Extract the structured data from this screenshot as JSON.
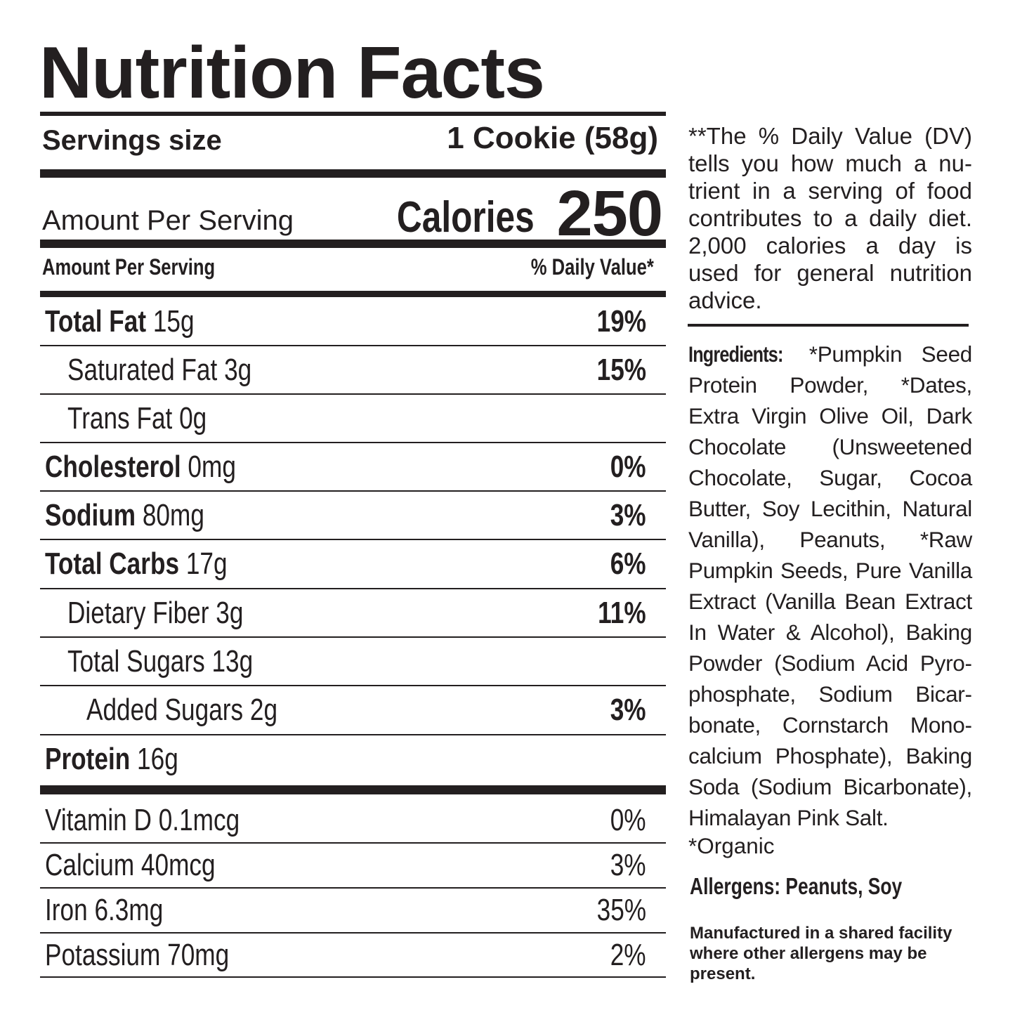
{
  "title": "Nutrition Facts",
  "serving": {
    "label": "Servings size",
    "value": "1 Cookie (58g)"
  },
  "calories": {
    "amount_label": "Amount Per Serving",
    "label": "Calories",
    "value": "250"
  },
  "column_headers": {
    "left": "Amount Per Serving",
    "right": "% Daily Value*"
  },
  "nutrients": [
    {
      "name": "Total Fat",
      "amount": "15g",
      "dv": "19%"
    },
    {
      "name": "Saturated Fat",
      "amount": "3g",
      "dv": "15%"
    },
    {
      "name": "Trans Fat",
      "amount": "0g",
      "dv": ""
    },
    {
      "name": "Cholesterol",
      "amount": "0mg",
      "dv": "0%"
    },
    {
      "name": "Sodium",
      "amount": "80mg",
      "dv": "3%"
    },
    {
      "name": "Total Carbs",
      "amount": "17g",
      "dv": "6%"
    },
    {
      "name": "Dietary Fiber",
      "amount": "3g",
      "dv": "11%"
    },
    {
      "name": "Total Sugars",
      "amount": "13g",
      "dv": ""
    },
    {
      "name": "Added Sugars",
      "amount": "2g",
      "dv": "3%"
    },
    {
      "name": "Protein",
      "amount": "16g",
      "dv": ""
    }
  ],
  "vitamins": [
    {
      "name": "Vitamin D",
      "amount": "0.1mcg",
      "dv": "0%"
    },
    {
      "name": "Calcium",
      "amount": "40mcg",
      "dv": "3%"
    },
    {
      "name": "Iron",
      "amount": "6.3mg",
      "dv": "35%"
    },
    {
      "name": "Potassium",
      "amount": "70mg",
      "dv": "2%"
    }
  ],
  "side": {
    "dv_note": "**The % Daily Value (DV) tells you how much a nu­trient in a serving of food contributes to a daily diet. 2,000 calories a day is used for general nutrition advice.",
    "ingredients_label": "Ingredients:",
    "ingredients_text": "*Pumpkin Seed Protein Powder, *Dates, Extra Virgin Olive Oil, Dark Chocolate (Unsweetened Chocolate, Sugar, Cocoa Butter, Soy Lecithin, Natural Vanilla), Peanuts, *Raw Pumpkin Seeds, Pure Vanilla Extract (Vanilla Bean Extract In Water & Alcohol), Baking Powder (Sodium Acid Pyro­phosphate, Sodium Bicar­bonate, Cornstarch Mono­calcium Phosphate), Baking Soda (Sodium Bicarbonate), Himalayan Pink Salt.",
    "organic_note": "*Organic",
    "allergens": "Allergens: Peanuts, Soy",
    "facility_note": "Manufactured in a shared facility where other allergens may be present."
  }
}
